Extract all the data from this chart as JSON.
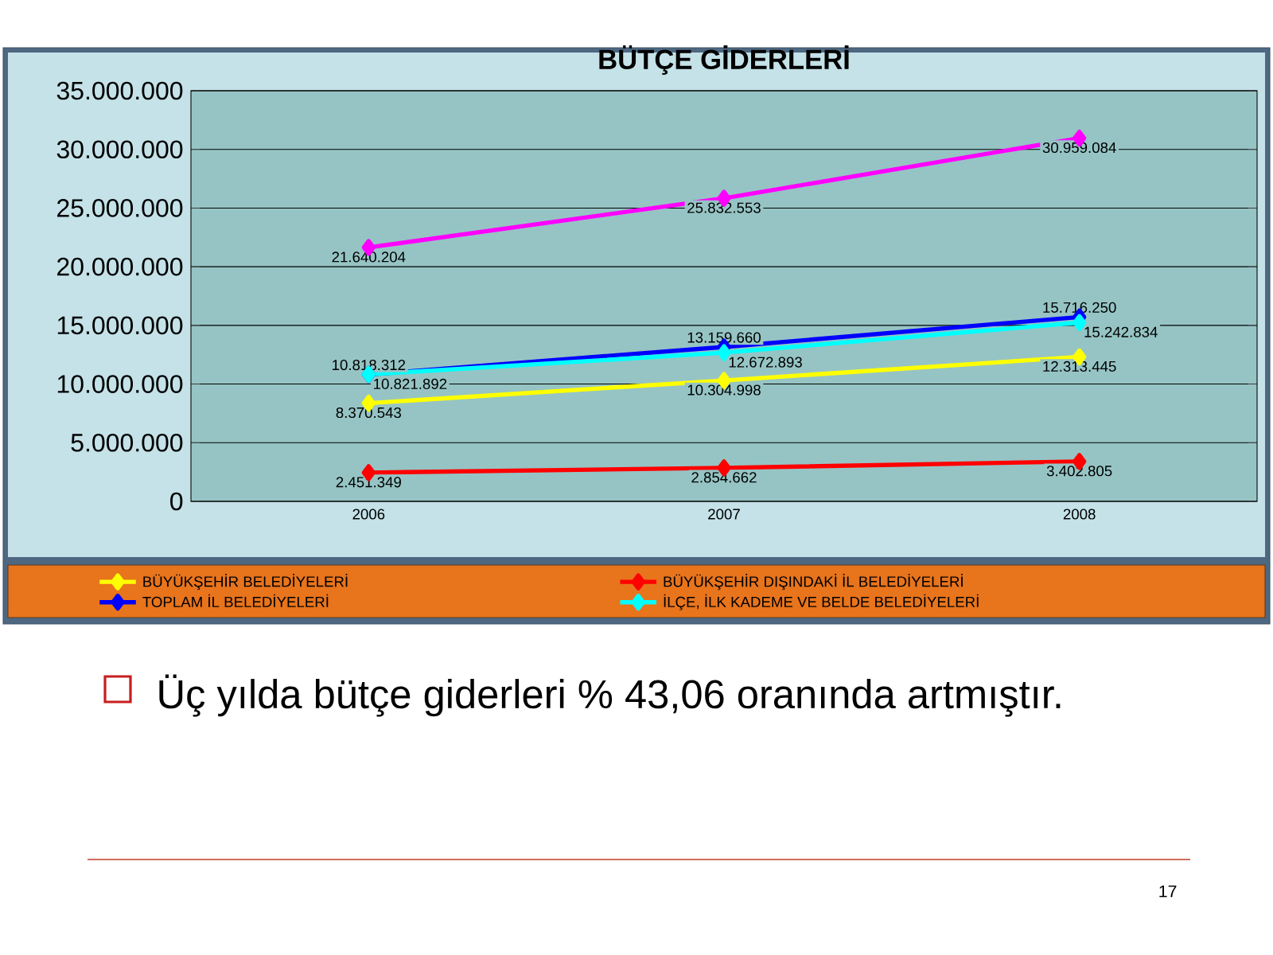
{
  "chart_data": {
    "type": "line",
    "title": "BÜTÇE GİDERLERİ",
    "categories": [
      "2006",
      "2007",
      "2008"
    ],
    "series": [
      {
        "name": "BÜYÜKŞEHİR BELEDİYELERİ",
        "color": "#ffff00",
        "values": [
          8370543,
          10304998,
          12313445
        ],
        "value_labels": [
          "8.370.543",
          "10.304.998",
          "12.313.445"
        ]
      },
      {
        "name": "BÜYÜKŞEHİR DIŞINDAKİ İL BELEDİYELERİ",
        "color": "#ff0000",
        "values": [
          2451349,
          2854662,
          3402805
        ],
        "value_labels": [
          "2.451.349",
          "2.854.662",
          "3.402.805"
        ]
      },
      {
        "name": "TOPLAM İL BELEDİYELERİ",
        "color": "#0000ff",
        "values": [
          10818312,
          13159660,
          15716250
        ],
        "value_labels": [
          "10.818.312",
          "13.159.660",
          "15.716.250"
        ]
      },
      {
        "name": "İLÇE, İLK KADEME VE BELDE BELEDİYELERİ",
        "color": "#00ffff",
        "values": [
          10821892,
          12672893,
          15242834
        ],
        "value_labels": [
          "10.821.892",
          "12.672.893",
          "15.242.834"
        ]
      },
      {
        "color": "#ff00ff",
        "values": [
          21640204,
          25832553,
          30959084
        ],
        "value_labels": [
          "21.640.204",
          "25.832.553",
          "30.959.084"
        ]
      }
    ],
    "ylim": [
      0,
      35000000
    ],
    "yticks": [
      0,
      {
        "value": 5000000,
        "label": "5.000.000"
      },
      {
        "value": 10000000,
        "label": "10.000.000"
      },
      {
        "value": 15000000,
        "label": "15.000.000"
      },
      {
        "value": 20000000,
        "label": "20.000.000"
      },
      {
        "value": 25000000,
        "label": "25.000.000"
      },
      {
        "value": 30000000,
        "label": "30.000.000"
      },
      {
        "value": 35000000,
        "label": "35.000.000"
      }
    ],
    "grid": "y",
    "legend": "bottom",
    "marker": "diamond",
    "line_style": "solid",
    "annotations": [
      "Üç yılda bütçe giderleri % 43,06 oranında artmıştır.",
      "17"
    ]
  }
}
